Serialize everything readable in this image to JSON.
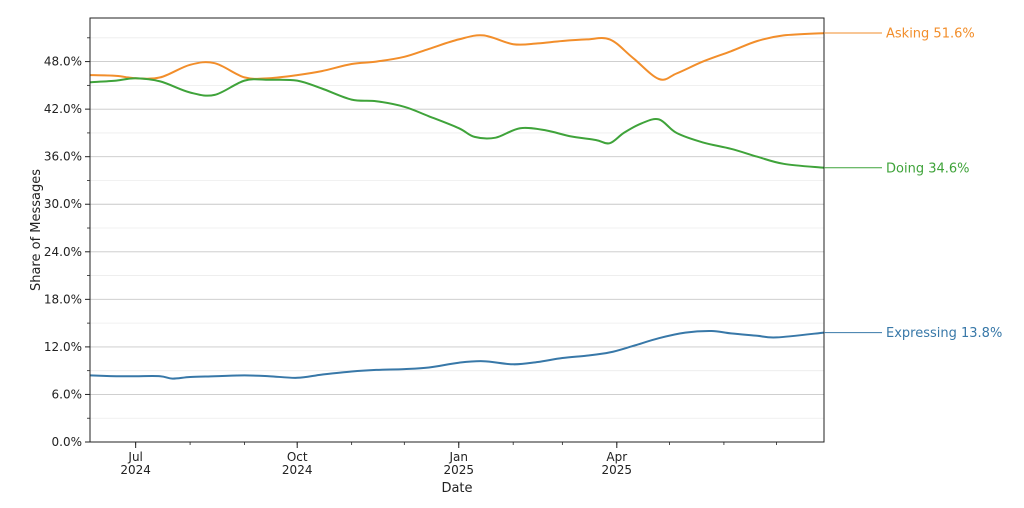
{
  "chart_data": {
    "type": "line",
    "xlabel": "Date",
    "ylabel": "Share of Messages",
    "ylim": [
      0,
      53.5
    ],
    "xlim": [
      "2024-06-05",
      "2025-07-28"
    ],
    "grid": "horizontal",
    "y_ticks": [
      "0.0%",
      "6.0%",
      "12.0%",
      "18.0%",
      "24.0%",
      "30.0%",
      "36.0%",
      "42.0%",
      "48.0%"
    ],
    "y_tick_values": [
      0,
      6,
      12,
      18,
      24,
      30,
      36,
      42,
      48
    ],
    "x_ticks": [
      {
        "date": "2024-07-01",
        "month": "Jul",
        "year": "2024"
      },
      {
        "date": "2024-10-01",
        "month": "Oct",
        "year": "2024"
      },
      {
        "date": "2025-01-01",
        "month": "Jan",
        "year": "2025"
      },
      {
        "date": "2025-04-01",
        "month": "Apr",
        "year": "2025"
      }
    ],
    "series": [
      {
        "name": "Asking",
        "color": "#f28e2b",
        "end_label": "Asking  51.6%",
        "points": [
          [
            "2024-06-05",
            46.3
          ],
          [
            "2024-06-20",
            46.2
          ],
          [
            "2024-07-01",
            45.9
          ],
          [
            "2024-07-15",
            46.0
          ],
          [
            "2024-08-01",
            47.6
          ],
          [
            "2024-08-15",
            47.8
          ],
          [
            "2024-09-01",
            46.0
          ],
          [
            "2024-09-15",
            45.9
          ],
          [
            "2024-10-01",
            46.3
          ],
          [
            "2024-10-15",
            46.8
          ],
          [
            "2024-11-01",
            47.7
          ],
          [
            "2024-11-15",
            48.0
          ],
          [
            "2024-12-01",
            48.6
          ],
          [
            "2024-12-15",
            49.6
          ],
          [
            "2025-01-01",
            50.8
          ],
          [
            "2025-01-15",
            51.3
          ],
          [
            "2025-02-01",
            50.2
          ],
          [
            "2025-02-15",
            50.3
          ],
          [
            "2025-03-01",
            50.6
          ],
          [
            "2025-03-15",
            50.8
          ],
          [
            "2025-03-28",
            50.8
          ],
          [
            "2025-04-10",
            48.5
          ],
          [
            "2025-04-25",
            45.8
          ],
          [
            "2025-05-05",
            46.5
          ],
          [
            "2025-05-20",
            48.0
          ],
          [
            "2025-06-05",
            49.3
          ],
          [
            "2025-06-20",
            50.6
          ],
          [
            "2025-07-05",
            51.3
          ],
          [
            "2025-07-28",
            51.6
          ]
        ]
      },
      {
        "name": "Doing",
        "color": "#3fa33a",
        "end_label": "Doing  34.6%",
        "points": [
          [
            "2024-06-05",
            45.4
          ],
          [
            "2024-06-20",
            45.6
          ],
          [
            "2024-07-01",
            45.9
          ],
          [
            "2024-07-15",
            45.5
          ],
          [
            "2024-08-01",
            44.1
          ],
          [
            "2024-08-15",
            43.8
          ],
          [
            "2024-09-01",
            45.6
          ],
          [
            "2024-09-15",
            45.7
          ],
          [
            "2024-10-01",
            45.6
          ],
          [
            "2024-10-15",
            44.6
          ],
          [
            "2024-11-01",
            43.2
          ],
          [
            "2024-11-15",
            43.0
          ],
          [
            "2024-12-01",
            42.3
          ],
          [
            "2024-12-15",
            41.1
          ],
          [
            "2025-01-01",
            39.6
          ],
          [
            "2025-01-10",
            38.5
          ],
          [
            "2025-01-22",
            38.4
          ],
          [
            "2025-02-05",
            39.6
          ],
          [
            "2025-02-20",
            39.3
          ],
          [
            "2025-03-05",
            38.6
          ],
          [
            "2025-03-20",
            38.1
          ],
          [
            "2025-03-28",
            37.7
          ],
          [
            "2025-04-05",
            39.0
          ],
          [
            "2025-04-15",
            40.2
          ],
          [
            "2025-04-25",
            40.7
          ],
          [
            "2025-05-05",
            39.0
          ],
          [
            "2025-05-20",
            37.8
          ],
          [
            "2025-06-05",
            37.0
          ],
          [
            "2025-06-20",
            36.0
          ],
          [
            "2025-07-05",
            35.1
          ],
          [
            "2025-07-28",
            34.6
          ]
        ]
      },
      {
        "name": "Expressing",
        "color": "#3878a8",
        "end_label": "Expressing  13.8%",
        "points": [
          [
            "2024-06-05",
            8.4
          ],
          [
            "2024-06-20",
            8.3
          ],
          [
            "2024-07-01",
            8.3
          ],
          [
            "2024-07-15",
            8.3
          ],
          [
            "2024-07-22",
            8.0
          ],
          [
            "2024-08-01",
            8.2
          ],
          [
            "2024-08-15",
            8.3
          ],
          [
            "2024-09-01",
            8.4
          ],
          [
            "2024-09-15",
            8.3
          ],
          [
            "2024-10-01",
            8.1
          ],
          [
            "2024-10-15",
            8.5
          ],
          [
            "2024-11-01",
            8.9
          ],
          [
            "2024-11-15",
            9.1
          ],
          [
            "2024-12-01",
            9.2
          ],
          [
            "2024-12-15",
            9.4
          ],
          [
            "2025-01-01",
            10.0
          ],
          [
            "2025-01-15",
            10.2
          ],
          [
            "2025-02-01",
            9.8
          ],
          [
            "2025-02-15",
            10.1
          ],
          [
            "2025-03-01",
            10.6
          ],
          [
            "2025-03-15",
            10.9
          ],
          [
            "2025-03-28",
            11.3
          ],
          [
            "2025-04-10",
            12.1
          ],
          [
            "2025-04-25",
            13.1
          ],
          [
            "2025-05-10",
            13.8
          ],
          [
            "2025-05-25",
            14.0
          ],
          [
            "2025-06-05",
            13.7
          ],
          [
            "2025-06-20",
            13.4
          ],
          [
            "2025-07-01",
            13.2
          ],
          [
            "2025-07-28",
            13.8
          ]
        ]
      }
    ]
  }
}
